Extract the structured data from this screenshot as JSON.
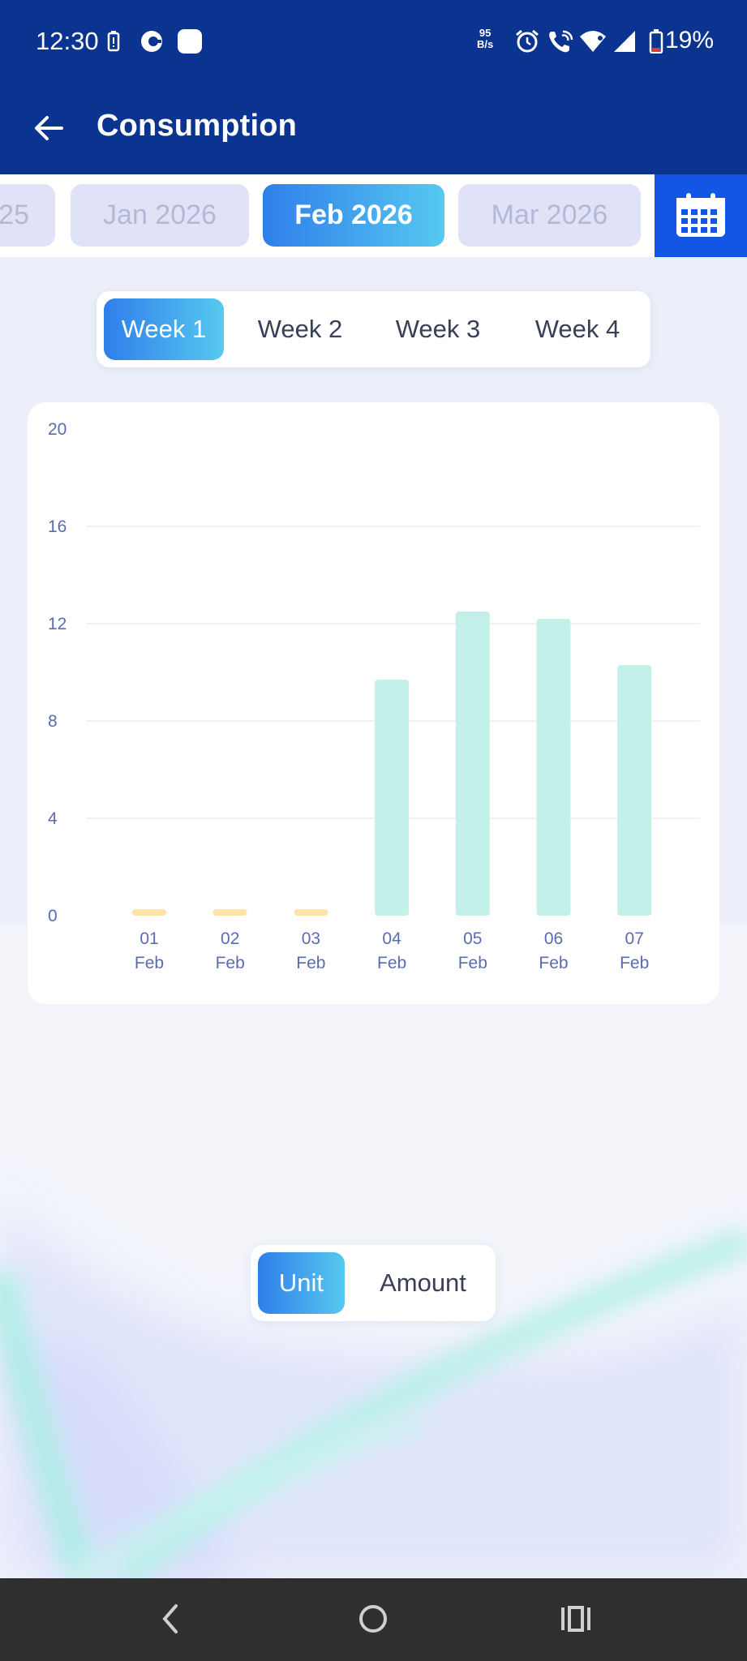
{
  "status_bar": {
    "time": "12:30",
    "net_speed_value": "95",
    "net_speed_unit": "B/s",
    "battery": "19%"
  },
  "app_bar": {
    "title": "Consumption"
  },
  "months": [
    {
      "label": "25",
      "active": false
    },
    {
      "label": "Jan 2026",
      "active": false
    },
    {
      "label": "Feb 2026",
      "active": true
    },
    {
      "label": "Mar 2026",
      "active": false
    }
  ],
  "weeks": [
    {
      "label": "Week 1",
      "active": true
    },
    {
      "label": "Week 2",
      "active": false
    },
    {
      "label": "Week 3",
      "active": false
    },
    {
      "label": "Week 4",
      "active": false
    }
  ],
  "toggle": {
    "unit_label": "Unit",
    "amount_label": "Amount",
    "selected": "Unit"
  },
  "colors": {
    "header": "#0b3390",
    "accent_start": "#2f7eea",
    "accent_end": "#56c9f0",
    "bar": "#c3f1ea",
    "bar_zero": "#fde3a6",
    "calendar": "#1356e6"
  },
  "chart_data": {
    "type": "bar",
    "categories": [
      "01 Feb",
      "02 Feb",
      "03 Feb",
      "04 Feb",
      "05 Feb",
      "06 Feb",
      "07 Feb"
    ],
    "category_lines": [
      [
        "01",
        "Feb"
      ],
      [
        "02",
        "Feb"
      ],
      [
        "03",
        "Feb"
      ],
      [
        "04",
        "Feb"
      ],
      [
        "05",
        "Feb"
      ],
      [
        "06",
        "Feb"
      ],
      [
        "07",
        "Feb"
      ]
    ],
    "values": [
      0,
      0,
      0,
      9.7,
      12.5,
      12.2,
      10.3
    ],
    "ylim": [
      0,
      20
    ],
    "yticks": [
      0,
      4,
      8,
      12,
      16,
      20
    ],
    "grid": true,
    "title": "",
    "xlabel": "",
    "ylabel": ""
  }
}
